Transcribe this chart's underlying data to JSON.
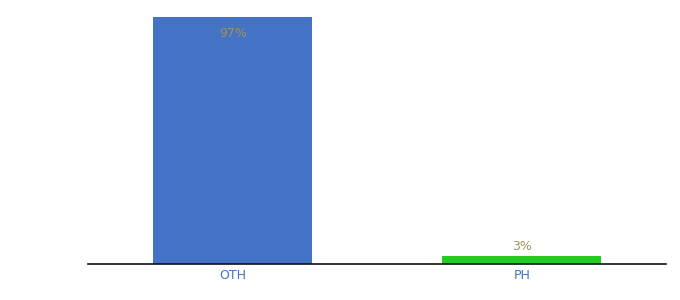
{
  "categories": [
    "OTH",
    "PH"
  ],
  "values": [
    97,
    3
  ],
  "bar_colors": [
    "#4472c4",
    "#22cc22"
  ],
  "label_color": "#a09060",
  "label_fontsize": 9,
  "xlabel_fontsize": 9,
  "xlabel_color": "#4472c4",
  "background_color": "#ffffff",
  "ylim": [
    0,
    100
  ],
  "bar_width": 0.55,
  "x_positions": [
    0,
    1
  ]
}
